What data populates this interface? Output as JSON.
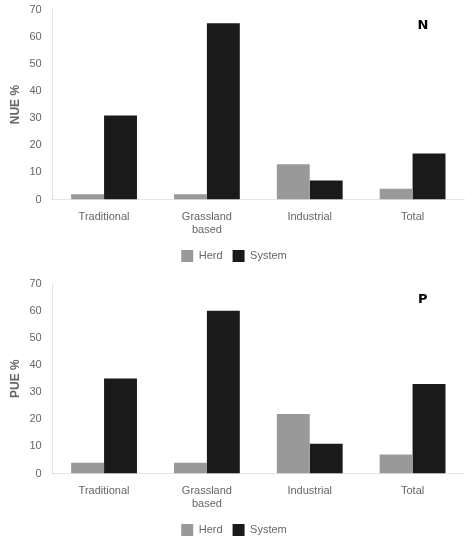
{
  "chart_data": [
    {
      "type": "bar",
      "categories": [
        "Traditional",
        "Grassland\nbased",
        "Industrial",
        "Total"
      ],
      "series": [
        {
          "name": "Herd",
          "color": "#999999",
          "values": [
            2,
            2,
            13,
            4
          ]
        },
        {
          "name": "System",
          "color": "#1a1a1a",
          "values": [
            31,
            65,
            7,
            17
          ]
        }
      ],
      "ylabel": "NUE %",
      "annotation": "N",
      "ylim": [
        0,
        70
      ],
      "yticks": [
        0,
        10,
        20,
        30,
        40,
        50,
        60,
        70
      ],
      "grid": false,
      "legend": "bottom"
    },
    {
      "type": "bar",
      "categories": [
        "Traditional",
        "Grassland\nbased",
        "Industrial",
        "Total"
      ],
      "series": [
        {
          "name": "Herd",
          "color": "#999999",
          "values": [
            4,
            4,
            22,
            7
          ]
        },
        {
          "name": "System",
          "color": "#1a1a1a",
          "values": [
            35,
            60,
            11,
            33
          ]
        }
      ],
      "ylabel": "PUE %",
      "annotation": "P",
      "ylim": [
        0,
        70
      ],
      "yticks": [
        0,
        10,
        20,
        30,
        40,
        50,
        60,
        70
      ],
      "grid": false,
      "legend": "bottom"
    }
  ]
}
